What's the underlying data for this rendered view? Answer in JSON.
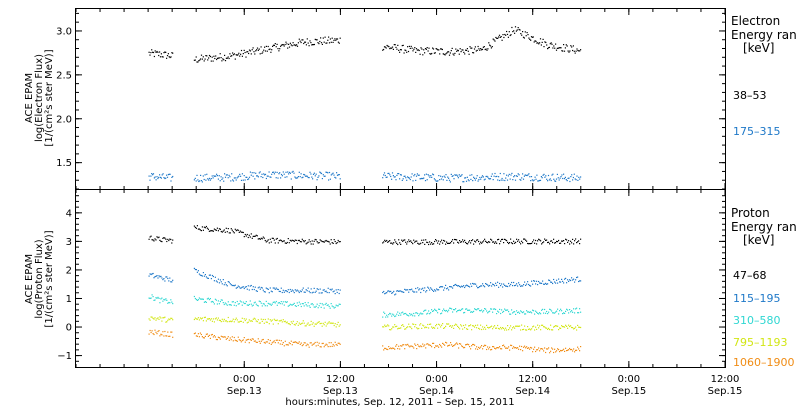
{
  "chart_data": [
    {
      "type": "scatter",
      "panel": "electron",
      "ylabel": [
        "ACE EPAM",
        "log(Electron Flux)",
        "[1/(cm²s ster MeV)]"
      ],
      "ylim": [
        1.2,
        3.25
      ],
      "yticks": [
        1.5,
        2.0,
        2.5,
        3.0
      ],
      "ytick_labels": [
        "1.5",
        "2.0",
        "2.5",
        "3.0"
      ],
      "legend_title": [
        "Electron",
        "Energy ran",
        "[keV]"
      ],
      "series": [
        {
          "name": "38–53",
          "color": "#000000",
          "segments": [
            {
              "start": 0.05,
              "end": 3.0,
              "baseline": [
                2.75,
                2.74,
                2.72
              ]
            },
            {
              "start": 5.7,
              "end": 23.9,
              "baseline": [
                2.68,
                2.72,
                2.8,
                2.88,
                2.9
              ]
            },
            {
              "start": 29.2,
              "end": 53.9,
              "baseline": [
                2.83,
                2.78,
                2.77,
                2.79,
                3.02,
                2.85,
                2.78
              ]
            }
          ]
        },
        {
          "name": "175–315",
          "color": "#1e78c8",
          "segments": [
            {
              "start": 0.05,
              "end": 3.0,
              "baseline": [
                1.35,
                1.34,
                1.33
              ]
            },
            {
              "start": 5.7,
              "end": 23.9,
              "baseline": [
                1.33,
                1.34,
                1.37,
                1.36,
                1.35
              ]
            },
            {
              "start": 29.2,
              "end": 53.9,
              "baseline": [
                1.35,
                1.34,
                1.33,
                1.34,
                1.35,
                1.34,
                1.33
              ]
            }
          ]
        }
      ]
    },
    {
      "type": "scatter",
      "panel": "proton",
      "ylabel": [
        "ACE EPAM",
        "log(Proton Flux)",
        "[1/(cm²s ster MeV)]"
      ],
      "ylim": [
        -1.4,
        4.8
      ],
      "yticks": [
        -1,
        0,
        1,
        2,
        3,
        4
      ],
      "ytick_labels": [
        "−1",
        "0",
        "1",
        "2",
        "3",
        "4"
      ],
      "legend_title": [
        "Proton",
        "Energy ran",
        "[keV]"
      ],
      "series": [
        {
          "name": "47–68",
          "color": "#000000",
          "segments": [
            {
              "start": 0.05,
              "end": 3.0,
              "baseline": [
                3.15,
                3.08,
                3.05
              ]
            },
            {
              "start": 5.7,
              "end": 23.9,
              "baseline": [
                3.5,
                3.4,
                3.05,
                3.02,
                3.0
              ]
            },
            {
              "start": 29.2,
              "end": 53.9,
              "baseline": [
                3.0,
                3.0,
                3.0,
                3.01,
                3.02,
                3.02,
                3.02
              ]
            }
          ]
        },
        {
          "name": "115–195",
          "color": "#1e78c8",
          "segments": [
            {
              "start": 0.05,
              "end": 3.0,
              "baseline": [
                1.85,
                1.75,
                1.65
              ]
            },
            {
              "start": 5.7,
              "end": 23.9,
              "baseline": [
                2.0,
                1.5,
                1.3,
                1.3,
                1.28
              ]
            },
            {
              "start": 29.2,
              "end": 53.9,
              "baseline": [
                1.2,
                1.3,
                1.4,
                1.5,
                1.5,
                1.6,
                1.7
              ]
            }
          ]
        },
        {
          "name": "310–580",
          "color": "#2fd7d2",
          "segments": [
            {
              "start": 0.05,
              "end": 3.0,
              "baseline": [
                1.1,
                0.95,
                0.9
              ]
            },
            {
              "start": 5.7,
              "end": 23.9,
              "baseline": [
                1.0,
                0.85,
                0.85,
                0.8,
                0.75
              ]
            },
            {
              "start": 29.2,
              "end": 53.9,
              "baseline": [
                0.45,
                0.5,
                0.6,
                0.6,
                0.55,
                0.55,
                0.6
              ]
            }
          ]
        },
        {
          "name": "795–1193",
          "color": "#d2e614",
          "segments": [
            {
              "start": 0.05,
              "end": 3.0,
              "baseline": [
                0.35,
                0.3,
                0.25
              ]
            },
            {
              "start": 5.7,
              "end": 23.9,
              "baseline": [
                0.3,
                0.28,
                0.22,
                0.15,
                0.1
              ]
            },
            {
              "start": 29.2,
              "end": 53.9,
              "baseline": [
                0.0,
                0.05,
                0.05,
                0.0,
                0.0,
                0.0,
                0.0
              ]
            }
          ]
        },
        {
          "name": "1060–1900",
          "color": "#f08c14",
          "segments": [
            {
              "start": 0.05,
              "end": 3.0,
              "baseline": [
                -0.15,
                -0.2,
                -0.25
              ]
            },
            {
              "start": 5.7,
              "end": 23.9,
              "baseline": [
                -0.25,
                -0.4,
                -0.5,
                -0.6,
                -0.6
              ]
            },
            {
              "start": 29.2,
              "end": 53.9,
              "baseline": [
                -0.7,
                -0.65,
                -0.6,
                -0.7,
                -0.7,
                -0.8,
                -0.75
              ]
            }
          ]
        }
      ]
    }
  ],
  "x_axis": {
    "range_hours_since_sep12_1200": [
      -9,
      72
    ],
    "tick_labels": [
      {
        "time": "0:00",
        "date": "Sep.13",
        "hour": 12
      },
      {
        "time": "12:00",
        "date": "Sep.13",
        "hour": 24
      },
      {
        "time": "0:00",
        "date": "Sep.14",
        "hour": 36
      },
      {
        "time": "12:00",
        "date": "Sep.14",
        "hour": 48
      },
      {
        "time": "0:00",
        "date": "Sep.15",
        "hour": 60
      },
      {
        "time": "12:00",
        "date": "Sep.15",
        "hour": 72
      }
    ],
    "xlabel": "hours:minutes, Sep. 12, 2011 – Sep. 15, 2011"
  }
}
